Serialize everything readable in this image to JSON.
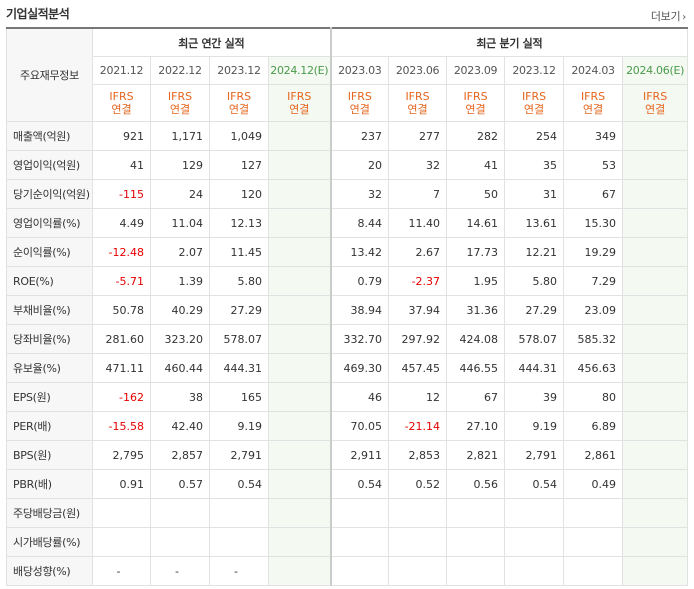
{
  "header": {
    "title": "기업실적분석",
    "more_label": "더보기",
    "more_arrow": "›"
  },
  "table": {
    "row_header_label": "주요재무정보",
    "annual_group": "최근 연간 실적",
    "quarterly_group": "최근 분기 실적",
    "annual_periods": [
      "2021.12",
      "2022.12",
      "2023.12",
      "2024.12(E)"
    ],
    "quarterly_periods": [
      "2023.03",
      "2023.06",
      "2023.09",
      "2023.12",
      "2024.03",
      "2024.06(E)"
    ],
    "ifrs_line1": "IFRS",
    "ifrs_line2": "연결",
    "rows": [
      {
        "label": "매출액(억원)",
        "annual": [
          "921",
          "1,171",
          "1,049",
          ""
        ],
        "quarterly": [
          "237",
          "277",
          "282",
          "254",
          "349",
          ""
        ]
      },
      {
        "label": "영업이익(억원)",
        "annual": [
          "41",
          "129",
          "127",
          ""
        ],
        "quarterly": [
          "20",
          "32",
          "41",
          "35",
          "53",
          ""
        ]
      },
      {
        "label": "당기순이익(억원)",
        "annual": [
          "-115",
          "24",
          "120",
          ""
        ],
        "quarterly": [
          "32",
          "7",
          "50",
          "31",
          "67",
          ""
        ]
      },
      {
        "label": "영업이익률(%)",
        "annual": [
          "4.49",
          "11.04",
          "12.13",
          ""
        ],
        "quarterly": [
          "8.44",
          "11.40",
          "14.61",
          "13.61",
          "15.30",
          ""
        ]
      },
      {
        "label": "순이익률(%)",
        "annual": [
          "-12.48",
          "2.07",
          "11.45",
          ""
        ],
        "quarterly": [
          "13.42",
          "2.67",
          "17.73",
          "12.21",
          "19.29",
          ""
        ]
      },
      {
        "label": "ROE(%)",
        "annual": [
          "-5.71",
          "1.39",
          "5.80",
          ""
        ],
        "quarterly": [
          "0.79",
          "-2.37",
          "1.95",
          "5.80",
          "7.29",
          ""
        ]
      },
      {
        "label": "부채비율(%)",
        "annual": [
          "50.78",
          "40.29",
          "27.29",
          ""
        ],
        "quarterly": [
          "38.94",
          "37.94",
          "31.36",
          "27.29",
          "23.09",
          ""
        ]
      },
      {
        "label": "당좌비율(%)",
        "annual": [
          "281.60",
          "323.20",
          "578.07",
          ""
        ],
        "quarterly": [
          "332.70",
          "297.92",
          "424.08",
          "578.07",
          "585.32",
          ""
        ]
      },
      {
        "label": "유보율(%)",
        "annual": [
          "471.11",
          "460.44",
          "444.31",
          ""
        ],
        "quarterly": [
          "469.30",
          "457.45",
          "446.55",
          "444.31",
          "456.63",
          ""
        ]
      },
      {
        "label": "EPS(원)",
        "annual": [
          "-162",
          "38",
          "165",
          ""
        ],
        "quarterly": [
          "46",
          "12",
          "67",
          "39",
          "80",
          ""
        ]
      },
      {
        "label": "PER(배)",
        "annual": [
          "-15.58",
          "42.40",
          "9.19",
          ""
        ],
        "quarterly": [
          "70.05",
          "-21.14",
          "27.10",
          "9.19",
          "6.89",
          ""
        ]
      },
      {
        "label": "BPS(원)",
        "annual": [
          "2,795",
          "2,857",
          "2,791",
          ""
        ],
        "quarterly": [
          "2,911",
          "2,853",
          "2,821",
          "2,791",
          "2,861",
          ""
        ]
      },
      {
        "label": "PBR(배)",
        "annual": [
          "0.91",
          "0.57",
          "0.54",
          ""
        ],
        "quarterly": [
          "0.54",
          "0.52",
          "0.56",
          "0.54",
          "0.49",
          ""
        ]
      },
      {
        "label": "주당배당금(원)",
        "annual": [
          "",
          "",
          "",
          ""
        ],
        "quarterly": [
          "",
          "",
          "",
          "",
          "",
          ""
        ]
      },
      {
        "label": "시가배당률(%)",
        "annual": [
          "",
          "",
          "",
          ""
        ],
        "quarterly": [
          "",
          "",
          "",
          "",
          "",
          ""
        ]
      },
      {
        "label": "배당성향(%)",
        "annual": [
          "-",
          "-",
          "-",
          ""
        ],
        "quarterly": [
          "",
          "",
          "",
          "",
          "",
          ""
        ]
      }
    ]
  },
  "colors": {
    "ifrs": "#e5641e",
    "estimate_bg": "#f4faf2",
    "negative": "#e60000"
  }
}
